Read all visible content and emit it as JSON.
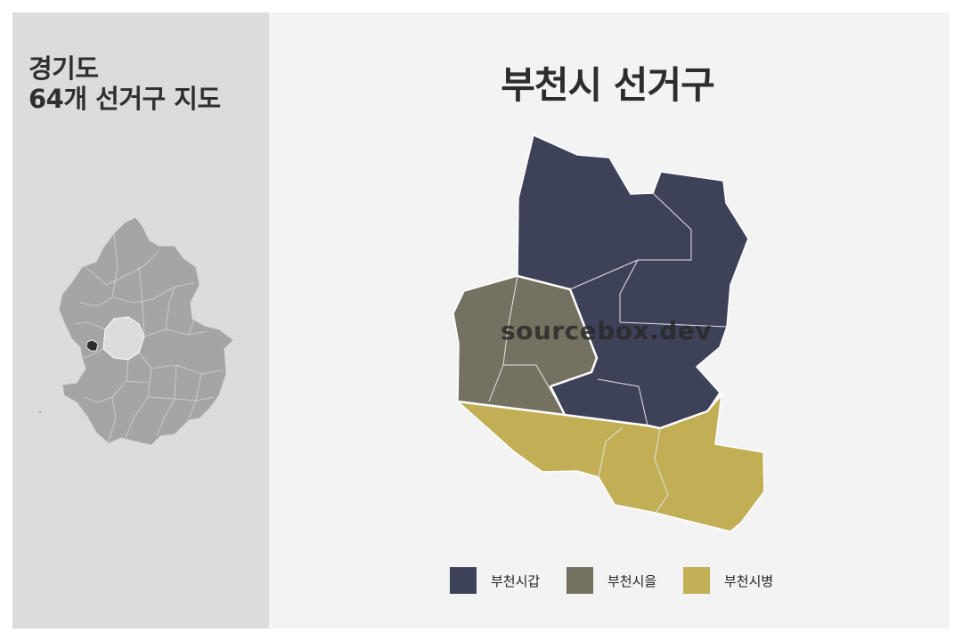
{
  "side_panel": {
    "title_line1": "경기도",
    "title_line2": "64개 선거구 지도"
  },
  "main": {
    "title": "부천시 선거구",
    "watermark": "sourcebox.dev"
  },
  "colors": {
    "gap": "#3d4259",
    "eul": "#747160",
    "byeong": "#c2ae55",
    "province_fill": "#a5a5a5",
    "highlight": "#2b2b2b"
  },
  "legend": [
    {
      "label": "부천시갑",
      "color": "#3d4259"
    },
    {
      "label": "부천시을",
      "color": "#747160"
    },
    {
      "label": "부천시병",
      "color": "#c2ae55"
    }
  ]
}
